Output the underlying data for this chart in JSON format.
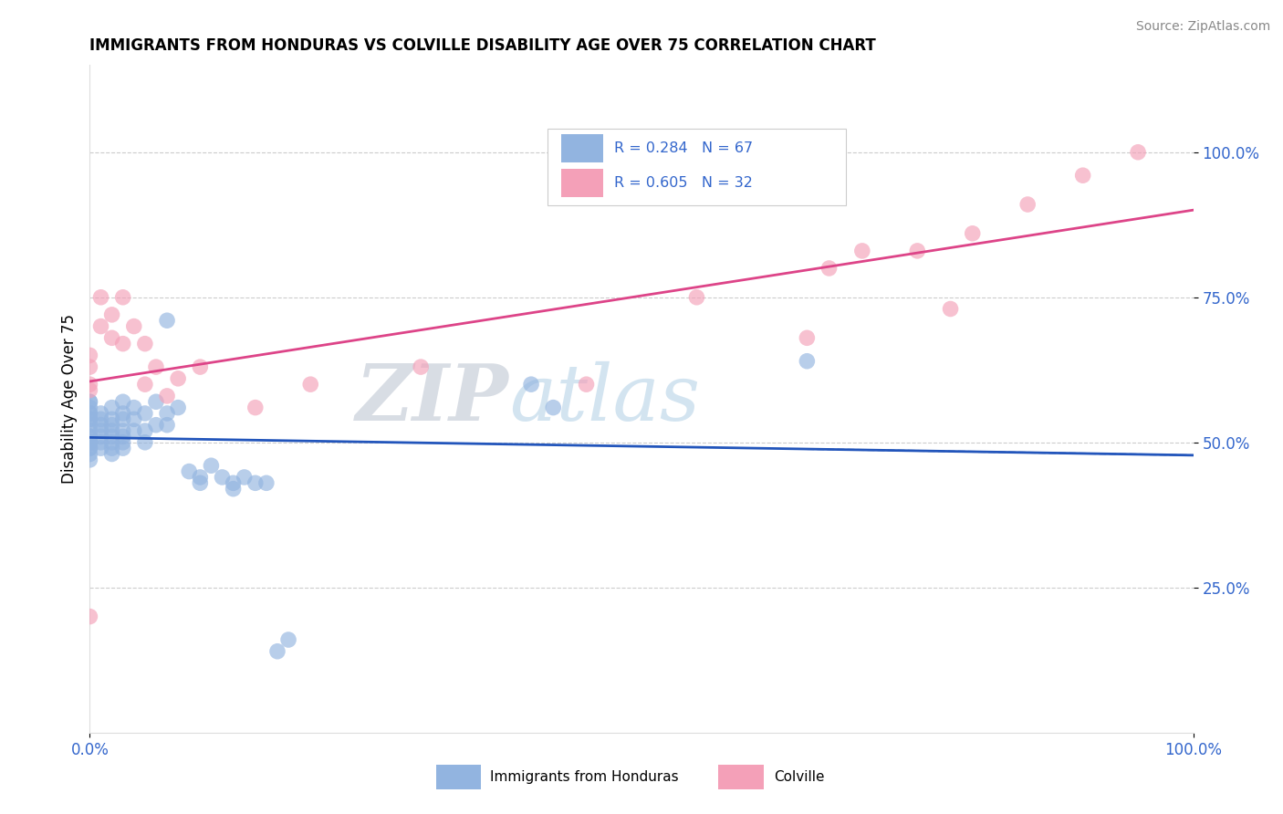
{
  "title": "IMMIGRANTS FROM HONDURAS VS COLVILLE DISABILITY AGE OVER 75 CORRELATION CHART",
  "source": "Source: ZipAtlas.com",
  "ylabel": "Disability Age Over 75",
  "legend_label_1": "Immigrants from Honduras",
  "legend_label_2": "Colville",
  "r1": 0.284,
  "n1": 67,
  "r2": 0.605,
  "n2": 32,
  "color1": "#92b4e0",
  "color2": "#f4a0b8",
  "trendline1_color": "#2255bb",
  "trendline2_color": "#dd4488",
  "xmin": 0.0,
  "xmax": 1.0,
  "ymin": 0.0,
  "ymax": 1.15,
  "blue_points": [
    [
      0.0,
      0.57
    ],
    [
      0.0,
      0.57
    ],
    [
      0.0,
      0.56
    ],
    [
      0.0,
      0.55
    ],
    [
      0.0,
      0.55
    ],
    [
      0.0,
      0.54
    ],
    [
      0.0,
      0.54
    ],
    [
      0.0,
      0.53
    ],
    [
      0.0,
      0.52
    ],
    [
      0.0,
      0.51
    ],
    [
      0.0,
      0.51
    ],
    [
      0.0,
      0.5
    ],
    [
      0.0,
      0.5
    ],
    [
      0.0,
      0.5
    ],
    [
      0.0,
      0.49
    ],
    [
      0.0,
      0.49
    ],
    [
      0.0,
      0.48
    ],
    [
      0.0,
      0.47
    ],
    [
      0.01,
      0.55
    ],
    [
      0.01,
      0.54
    ],
    [
      0.01,
      0.53
    ],
    [
      0.01,
      0.52
    ],
    [
      0.01,
      0.51
    ],
    [
      0.01,
      0.5
    ],
    [
      0.01,
      0.49
    ],
    [
      0.02,
      0.56
    ],
    [
      0.02,
      0.54
    ],
    [
      0.02,
      0.53
    ],
    [
      0.02,
      0.52
    ],
    [
      0.02,
      0.51
    ],
    [
      0.02,
      0.5
    ],
    [
      0.02,
      0.49
    ],
    [
      0.02,
      0.48
    ],
    [
      0.03,
      0.57
    ],
    [
      0.03,
      0.55
    ],
    [
      0.03,
      0.54
    ],
    [
      0.03,
      0.52
    ],
    [
      0.03,
      0.51
    ],
    [
      0.03,
      0.5
    ],
    [
      0.03,
      0.49
    ],
    [
      0.04,
      0.56
    ],
    [
      0.04,
      0.54
    ],
    [
      0.04,
      0.52
    ],
    [
      0.05,
      0.55
    ],
    [
      0.05,
      0.52
    ],
    [
      0.05,
      0.5
    ],
    [
      0.06,
      0.57
    ],
    [
      0.06,
      0.53
    ],
    [
      0.07,
      0.71
    ],
    [
      0.07,
      0.55
    ],
    [
      0.07,
      0.53
    ],
    [
      0.08,
      0.56
    ],
    [
      0.09,
      0.45
    ],
    [
      0.1,
      0.44
    ],
    [
      0.1,
      0.43
    ],
    [
      0.11,
      0.46
    ],
    [
      0.12,
      0.44
    ],
    [
      0.13,
      0.43
    ],
    [
      0.13,
      0.42
    ],
    [
      0.14,
      0.44
    ],
    [
      0.15,
      0.43
    ],
    [
      0.16,
      0.43
    ],
    [
      0.17,
      0.14
    ],
    [
      0.18,
      0.16
    ],
    [
      0.4,
      0.6
    ],
    [
      0.42,
      0.56
    ],
    [
      0.65,
      0.64
    ]
  ],
  "pink_points": [
    [
      0.0,
      0.65
    ],
    [
      0.0,
      0.63
    ],
    [
      0.0,
      0.6
    ],
    [
      0.0,
      0.59
    ],
    [
      0.0,
      0.2
    ],
    [
      0.01,
      0.75
    ],
    [
      0.01,
      0.7
    ],
    [
      0.02,
      0.72
    ],
    [
      0.02,
      0.68
    ],
    [
      0.03,
      0.75
    ],
    [
      0.03,
      0.67
    ],
    [
      0.04,
      0.7
    ],
    [
      0.05,
      0.67
    ],
    [
      0.05,
      0.6
    ],
    [
      0.06,
      0.63
    ],
    [
      0.07,
      0.58
    ],
    [
      0.08,
      0.61
    ],
    [
      0.1,
      0.63
    ],
    [
      0.15,
      0.56
    ],
    [
      0.2,
      0.6
    ],
    [
      0.3,
      0.63
    ],
    [
      0.45,
      0.6
    ],
    [
      0.55,
      0.75
    ],
    [
      0.65,
      0.68
    ],
    [
      0.67,
      0.8
    ],
    [
      0.7,
      0.83
    ],
    [
      0.75,
      0.83
    ],
    [
      0.78,
      0.73
    ],
    [
      0.8,
      0.86
    ],
    [
      0.85,
      0.91
    ],
    [
      0.9,
      0.96
    ],
    [
      0.95,
      1.0
    ]
  ],
  "watermark_zip": "ZIP",
  "watermark_atlas": "atlas"
}
